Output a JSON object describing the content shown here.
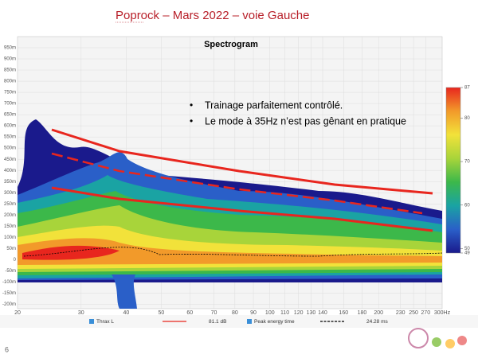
{
  "slide_title": "Poprock – Mars 2022 – voie Gauche",
  "page_number": "6",
  "chart_data": {
    "type": "spectrogram",
    "title": "Spectrogram",
    "annotations": [
      "Trainage parfaitement contrôlé.",
      "Le mode à 35Hz n’est pas gênant en pratique"
    ],
    "x_log": true,
    "xlim": [
      20,
      300
    ],
    "xticks": [
      20,
      30,
      40,
      50,
      60,
      70,
      80,
      90,
      100,
      110,
      120,
      130,
      140,
      160,
      180,
      200,
      230,
      250,
      270,
      {
        "value": 300,
        "label": "300Hz"
      }
    ],
    "ylim": [
      -220,
      1000
    ],
    "yticks": [
      {
        "value": 950,
        "label": "950m"
      },
      {
        "value": 900,
        "label": "900m"
      },
      {
        "value": 850,
        "label": "850m"
      },
      {
        "value": 800,
        "label": "800m"
      },
      {
        "value": 750,
        "label": "750m"
      },
      {
        "value": 700,
        "label": "700m"
      },
      {
        "value": 650,
        "label": "650m"
      },
      {
        "value": 600,
        "label": "600m"
      },
      {
        "value": 550,
        "label": "550m"
      },
      {
        "value": 500,
        "label": "500m"
      },
      {
        "value": 450,
        "label": "450m"
      },
      {
        "value": 400,
        "label": "400m"
      },
      {
        "value": 350,
        "label": "350m"
      },
      {
        "value": 300,
        "label": "300m"
      },
      {
        "value": 250,
        "label": "250m"
      },
      {
        "value": 200,
        "label": "200m"
      },
      {
        "value": 150,
        "label": "150m"
      },
      {
        "value": 100,
        "label": "100m"
      },
      {
        "value": 50,
        "label": "50m"
      },
      0,
      {
        "value": -50,
        "label": "-50m"
      },
      {
        "value": -100,
        "label": "-100m"
      },
      {
        "value": -150,
        "label": "-150m"
      },
      {
        "value": -200,
        "label": "-200m"
      }
    ],
    "clim": [
      49,
      87
    ],
    "cticks": [
      49,
      50,
      60,
      70,
      80,
      87
    ],
    "colormap": [
      "#1a1a8c",
      "#2a5fc8",
      "#1aa3a3",
      "#3cb84a",
      "#a8d43a",
      "#f2e23a",
      "#f29a2a",
      "#e8261e"
    ],
    "legend": [
      {
        "name": "Thrax L",
        "color": "#e8261e",
        "value_label": "81.1 dB"
      },
      {
        "name": "Peak energy time",
        "color": "#000000",
        "value_label": "24.28 ms"
      }
    ]
  }
}
